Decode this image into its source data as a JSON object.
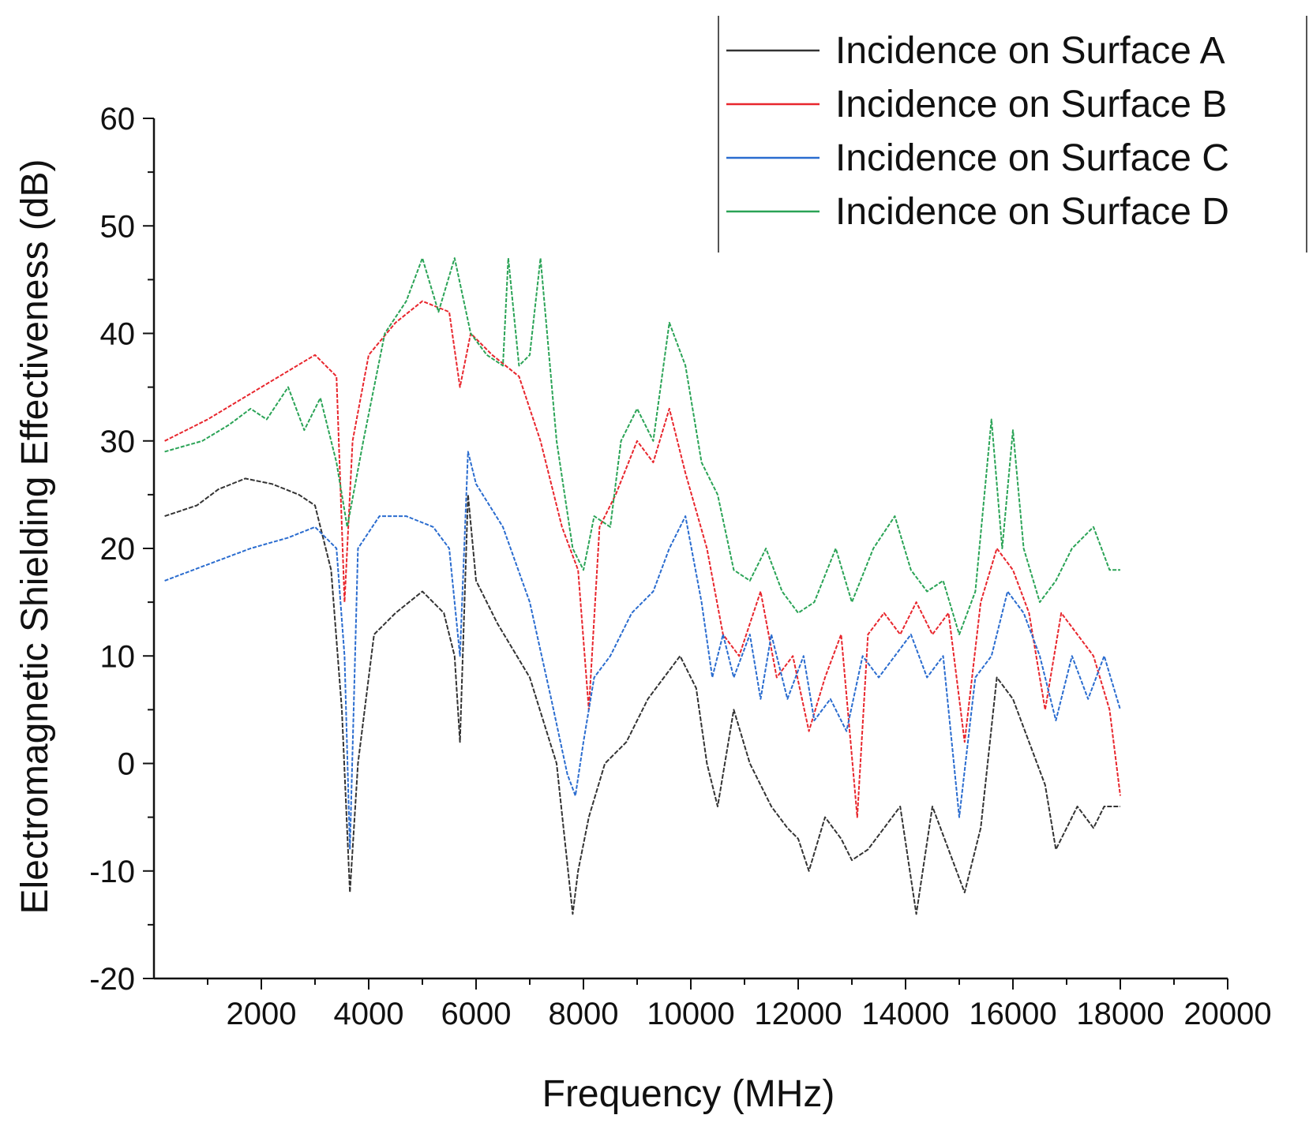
{
  "chart_data": {
    "type": "line",
    "title": "",
    "xlabel": "Frequency (MHz)",
    "ylabel": "Electromagnetic Shielding Effectiveness (dB)",
    "xlim": [
      0,
      20000
    ],
    "ylim": [
      -20,
      60
    ],
    "xticks": [
      2000,
      4000,
      6000,
      8000,
      10000,
      12000,
      14000,
      16000,
      18000,
      20000
    ],
    "yticks": [
      -20,
      -10,
      0,
      10,
      20,
      30,
      40,
      50,
      60
    ],
    "legend_position": "top-right",
    "grid": false,
    "series": [
      {
        "name": "Incidence on Surface A",
        "color": "#333333",
        "x": [
          200,
          800,
          1200,
          1700,
          2200,
          2700,
          3000,
          3300,
          3500,
          3650,
          3800,
          4100,
          4500,
          5000,
          5400,
          5600,
          5700,
          5850,
          6000,
          6400,
          7000,
          7500,
          7800,
          7900,
          8100,
          8400,
          8800,
          9200,
          9500,
          9800,
          10100,
          10300,
          10500,
          10800,
          11100,
          11500,
          11800,
          12000,
          12200,
          12500,
          12800,
          13000,
          13300,
          13600,
          13900,
          14200,
          14500,
          14800,
          15100,
          15400,
          15700,
          16000,
          16300,
          16600,
          16800,
          17000,
          17200,
          17500,
          17700,
          18000
        ],
        "values": [
          23,
          24,
          25.5,
          26.5,
          26,
          25,
          24,
          18,
          5,
          -12,
          0,
          12,
          14,
          16,
          14,
          10,
          2,
          25,
          17,
          13,
          8,
          0,
          -14,
          -10,
          -5,
          0,
          2,
          6,
          8,
          10,
          7,
          0,
          -4,
          5,
          0,
          -4,
          -6,
          -7,
          -10,
          -5,
          -7,
          -9,
          -8,
          -6,
          -4,
          -14,
          -4,
          -8,
          -12,
          -6,
          8,
          6,
          2,
          -2,
          -8,
          -6,
          -4,
          -6,
          -4,
          -4
        ]
      },
      {
        "name": "Incidence on Surface B",
        "color": "#e8262d",
        "x": [
          200,
          1000,
          2000,
          3000,
          3400,
          3550,
          3700,
          4000,
          4500,
          5000,
          5500,
          5700,
          5900,
          6300,
          6800,
          7200,
          7600,
          7900,
          8100,
          8300,
          8600,
          9000,
          9300,
          9600,
          9900,
          10300,
          10600,
          10900,
          11300,
          11600,
          11900,
          12200,
          12500,
          12800,
          13100,
          13300,
          13600,
          13900,
          14200,
          14500,
          14800,
          15100,
          15400,
          15700,
          16000,
          16300,
          16600,
          16900,
          17200,
          17500,
          17800,
          18000
        ],
        "values": [
          30,
          32,
          35,
          38,
          36,
          15,
          30,
          38,
          41,
          43,
          42,
          35,
          40,
          38,
          36,
          30,
          22,
          18,
          5,
          22,
          25,
          30,
          28,
          33,
          27,
          20,
          12,
          10,
          16,
          8,
          10,
          3,
          8,
          12,
          -5,
          12,
          14,
          12,
          15,
          12,
          14,
          2,
          15,
          20,
          18,
          14,
          5,
          14,
          12,
          10,
          5,
          -3
        ]
      },
      {
        "name": "Incidence on Surface C",
        "color": "#2a6ccf",
        "x": [
          200,
          1000,
          1800,
          2500,
          3000,
          3400,
          3550,
          3650,
          3800,
          4200,
          4700,
          5200,
          5500,
          5700,
          5850,
          6000,
          6500,
          7000,
          7400,
          7700,
          7850,
          8000,
          8200,
          8500,
          8900,
          9300,
          9600,
          9900,
          10200,
          10400,
          10600,
          10800,
          11100,
          11300,
          11500,
          11800,
          12100,
          12300,
          12600,
          12900,
          13200,
          13500,
          13800,
          14100,
          14400,
          14700,
          15000,
          15300,
          15600,
          15900,
          16200,
          16500,
          16800,
          17100,
          17400,
          17700,
          18000
        ],
        "values": [
          17,
          18.5,
          20,
          21,
          22,
          20,
          10,
          -8,
          20,
          23,
          23,
          22,
          20,
          10,
          29,
          26,
          22,
          15,
          6,
          -1,
          -3,
          2,
          8,
          10,
          14,
          16,
          20,
          23,
          15,
          8,
          12,
          8,
          12,
          6,
          12,
          6,
          10,
          4,
          6,
          3,
          10,
          8,
          10,
          12,
          8,
          10,
          -5,
          8,
          10,
          16,
          14,
          10,
          4,
          10,
          6,
          10,
          5
        ]
      },
      {
        "name": "Incidence on Surface D",
        "color": "#2aa356",
        "x": [
          200,
          900,
          1400,
          1800,
          2100,
          2500,
          2800,
          3100,
          3400,
          3600,
          3900,
          4300,
          4700,
          5000,
          5300,
          5600,
          5900,
          6200,
          6500,
          6600,
          6800,
          7000,
          7200,
          7500,
          7800,
          8000,
          8200,
          8500,
          8700,
          9000,
          9300,
          9600,
          9900,
          10200,
          10500,
          10800,
          11100,
          11400,
          11700,
          12000,
          12300,
          12700,
          13000,
          13400,
          13800,
          14100,
          14400,
          14700,
          15000,
          15300,
          15600,
          15800,
          16000,
          16200,
          16500,
          16800,
          17100,
          17500,
          17800,
          18000
        ],
        "values": [
          29,
          30,
          31.5,
          33,
          32,
          35,
          31,
          34,
          28,
          22,
          30,
          40,
          43,
          47,
          42,
          47,
          40,
          38,
          37,
          47,
          37,
          38,
          47,
          30,
          20,
          18,
          23,
          22,
          30,
          33,
          30,
          41,
          37,
          28,
          25,
          18,
          17,
          20,
          16,
          14,
          15,
          20,
          15,
          20,
          23,
          18,
          16,
          17,
          12,
          16,
          32,
          20,
          31,
          20,
          15,
          17,
          20,
          22,
          18,
          18
        ]
      }
    ]
  }
}
